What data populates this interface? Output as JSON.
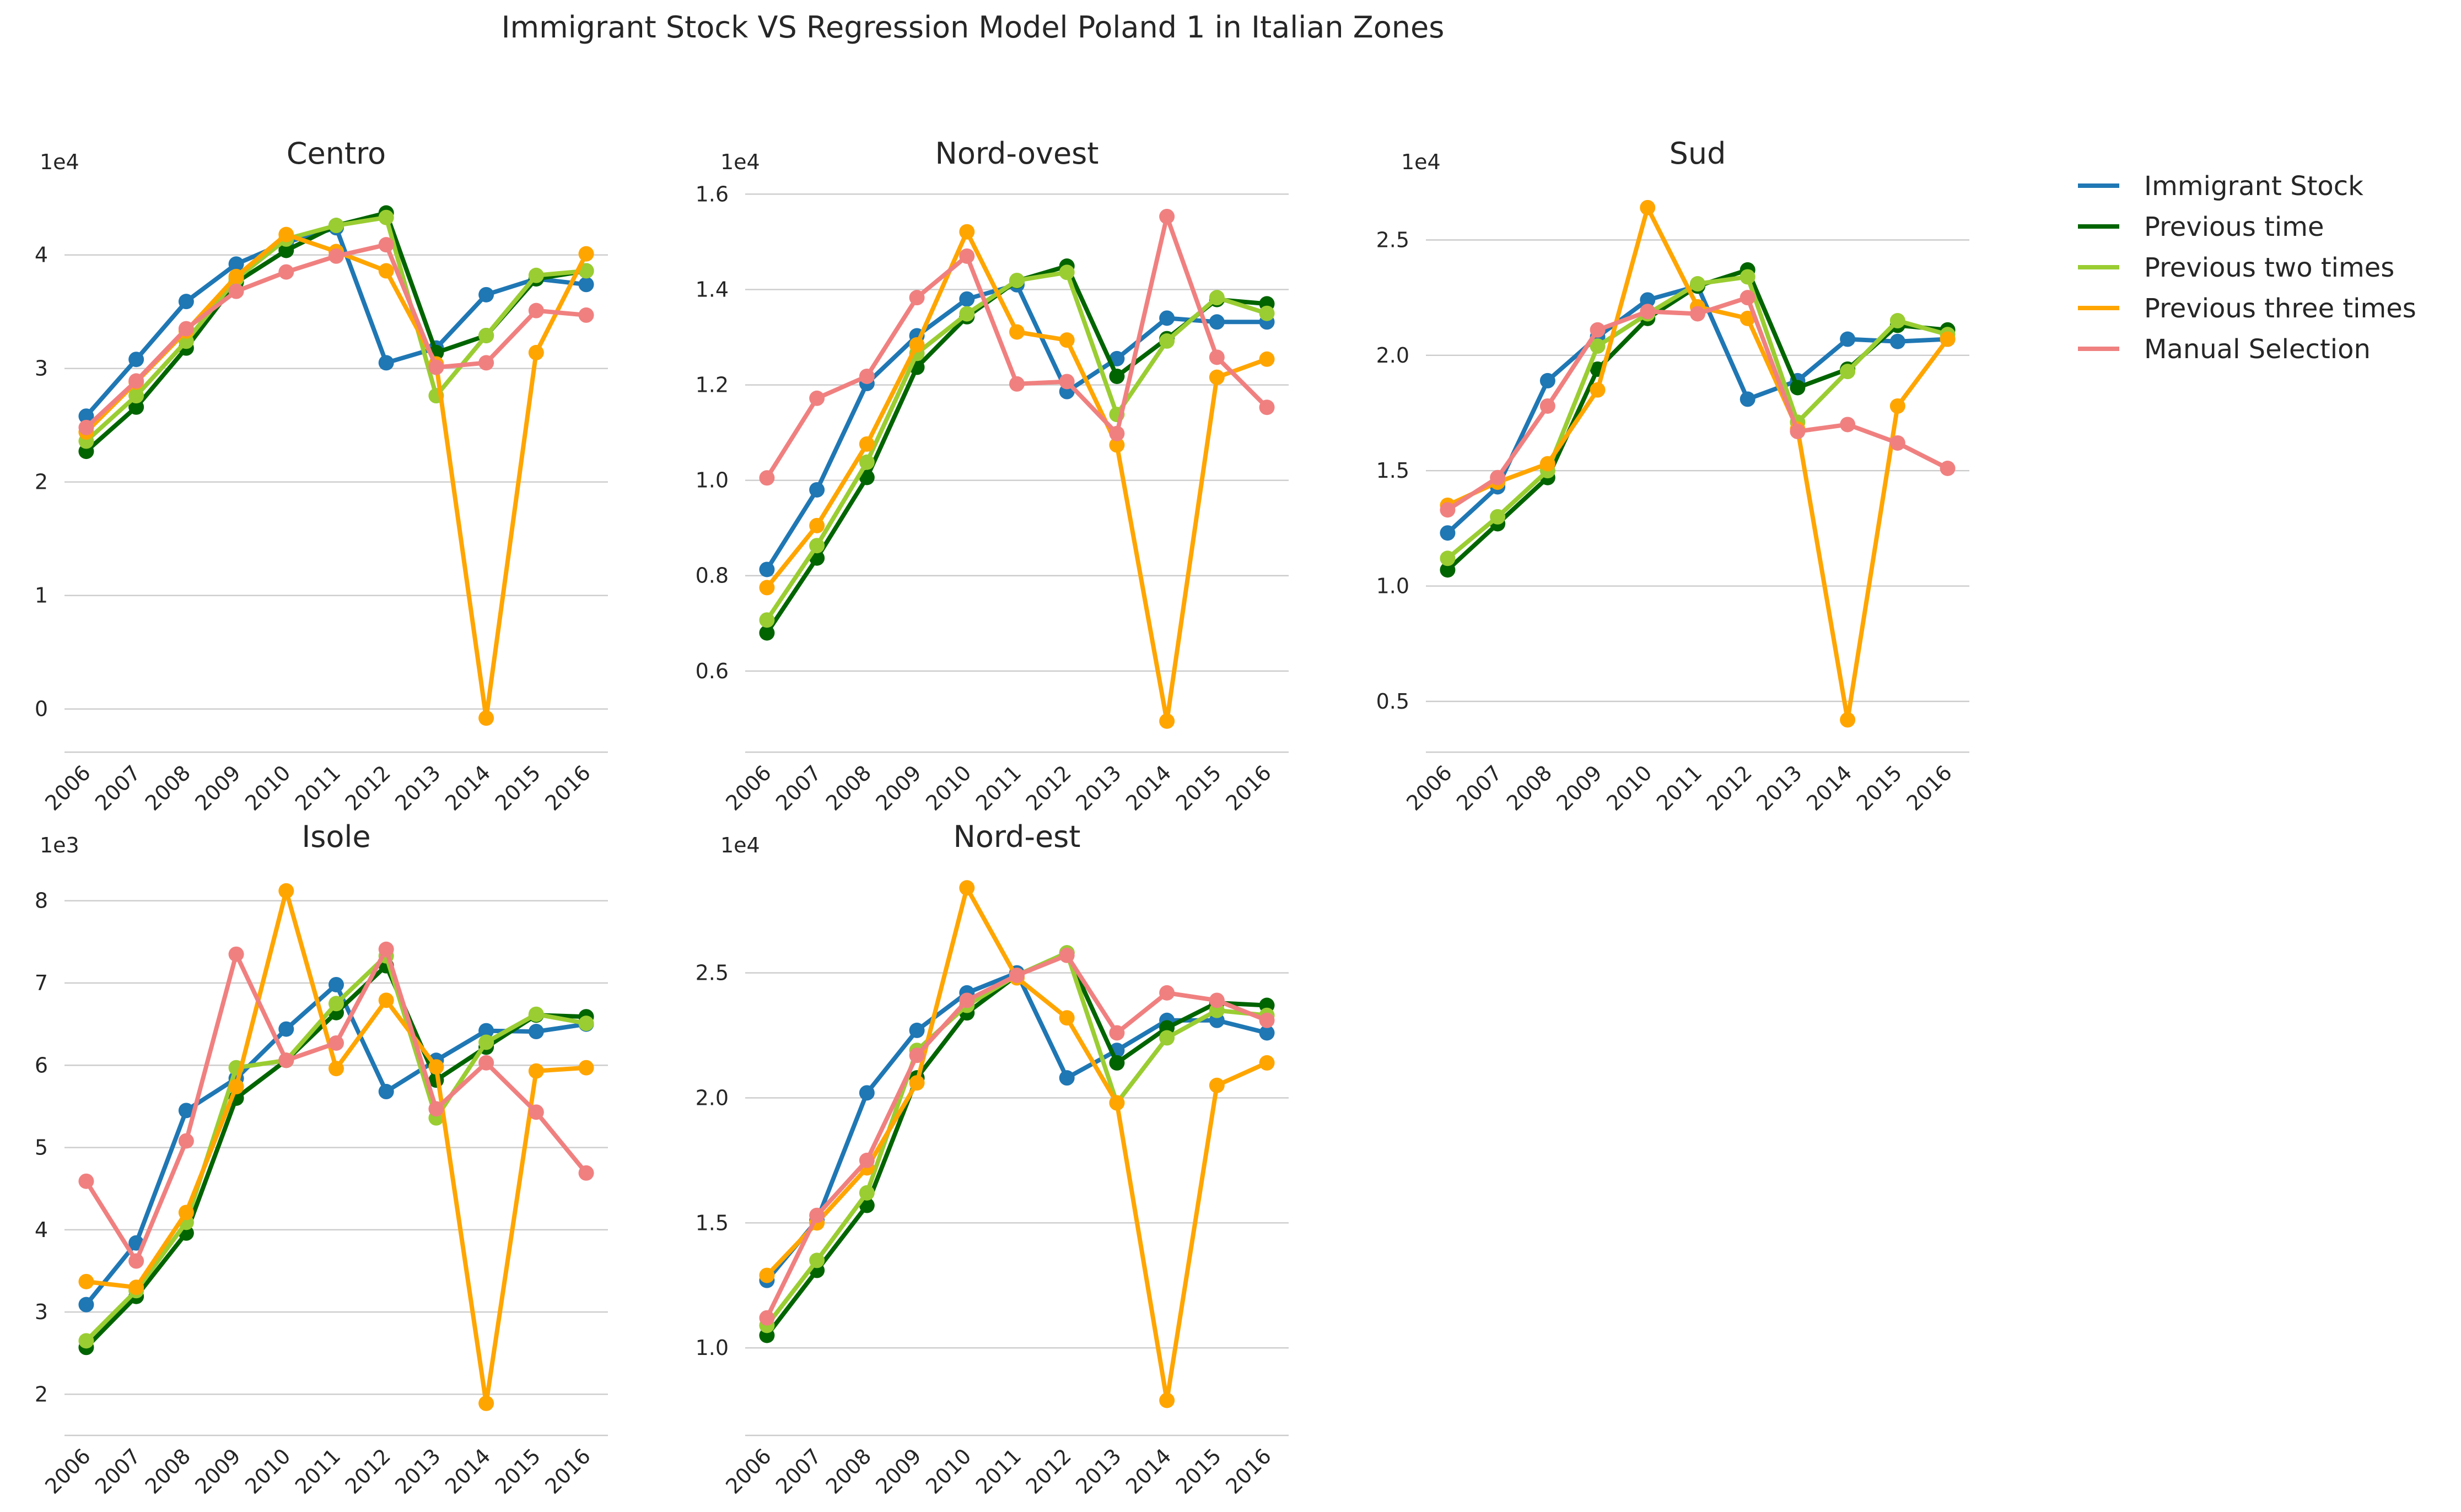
{
  "figure": {
    "title": "Immigrant Stock VS Regression Model Poland 1 in Italian Zones"
  },
  "legend": {
    "placement": "right-top",
    "items": [
      {
        "label": "Immigrant Stock",
        "color": "#1f77b4"
      },
      {
        "label": "Previous time",
        "color": "#006400"
      },
      {
        "label": "Previous two times",
        "color": "#9acd32"
      },
      {
        "label": "Previous three times",
        "color": "#ffa500"
      },
      {
        "label": "Manual Selection",
        "color": "#f08080"
      }
    ]
  },
  "chart_data": [
    {
      "type": "line",
      "title": "Centro",
      "scale_label": "1e4",
      "categories": [
        "2006",
        "2007",
        "2008",
        "2009",
        "2010",
        "2011",
        "2012",
        "2013",
        "2014",
        "2015",
        "2016"
      ],
      "ylim": [
        -0.38,
        4.62
      ],
      "yticks": [
        0,
        1,
        2,
        3,
        4
      ],
      "ytick_labels": [
        "0",
        "1",
        "2",
        "3",
        "4"
      ],
      "grid": "horizontal",
      "series": [
        {
          "name": "Immigrant Stock",
          "color": "#1f77b4",
          "values": [
            2.58,
            3.08,
            3.59,
            3.92,
            4.11,
            4.24,
            3.05,
            3.18,
            3.65,
            3.79,
            3.74
          ]
        },
        {
          "name": "Previous time",
          "color": "#006400",
          "values": [
            2.27,
            2.66,
            3.18,
            3.76,
            4.04,
            4.26,
            4.37,
            3.14,
            3.29,
            3.79,
            3.86
          ]
        },
        {
          "name": "Previous two times",
          "color": "#9acd32",
          "values": [
            2.36,
            2.76,
            3.24,
            3.79,
            4.14,
            4.26,
            4.33,
            2.76,
            3.29,
            3.82,
            3.86
          ]
        },
        {
          "name": "Previous three times",
          "color": "#ffa500",
          "values": [
            2.44,
            2.88,
            3.33,
            3.81,
            4.18,
            4.03,
            3.86,
            3.04,
            -0.08,
            3.14,
            4.01
          ]
        },
        {
          "name": "Manual Selection",
          "color": "#f08080",
          "values": [
            2.48,
            2.89,
            3.35,
            3.68,
            3.85,
            3.99,
            4.09,
            3.01,
            3.05,
            3.51,
            3.47
          ]
        }
      ]
    },
    {
      "type": "line",
      "title": "Nord-ovest",
      "scale_label": "1e4",
      "categories": [
        "2006",
        "2007",
        "2008",
        "2009",
        "2010",
        "2011",
        "2012",
        "2013",
        "2014",
        "2015",
        "2016"
      ],
      "ylim": [
        0.43,
        1.62
      ],
      "yticks": [
        0.6,
        0.8,
        1.0,
        1.2,
        1.4,
        1.6
      ],
      "ytick_labels": [
        "0.6",
        "0.8",
        "1.0",
        "1.2",
        "1.4",
        "1.6"
      ],
      "grid": "horizontal",
      "series": [
        {
          "name": "Immigrant Stock",
          "color": "#1f77b4",
          "values": [
            0.813,
            0.98,
            1.203,
            1.303,
            1.38,
            1.41,
            1.186,
            1.255,
            1.34,
            1.332,
            1.332
          ]
        },
        {
          "name": "Previous time",
          "color": "#006400",
          "values": [
            0.68,
            0.837,
            1.006,
            1.237,
            1.343,
            1.418,
            1.449,
            1.218,
            1.297,
            1.379,
            1.37
          ]
        },
        {
          "name": "Previous two times",
          "color": "#9acd32",
          "values": [
            0.707,
            0.863,
            1.038,
            1.266,
            1.349,
            1.419,
            1.436,
            1.138,
            1.292,
            1.383,
            1.35
          ]
        },
        {
          "name": "Previous three times",
          "color": "#ffa500",
          "values": [
            0.775,
            0.905,
            1.076,
            1.284,
            1.521,
            1.311,
            1.294,
            1.074,
            0.495,
            1.216,
            1.254
          ]
        },
        {
          "name": "Manual Selection",
          "color": "#f08080",
          "values": [
            1.005,
            1.172,
            1.218,
            1.383,
            1.47,
            1.202,
            1.207,
            1.098,
            1.553,
            1.258,
            1.153
          ]
        }
      ]
    },
    {
      "type": "line",
      "title": "Sud",
      "scale_label": "1e4",
      "categories": [
        "2006",
        "2007",
        "2008",
        "2009",
        "2010",
        "2011",
        "2012",
        "2013",
        "2014",
        "2015",
        "2016"
      ],
      "ylim": [
        0.28,
        2.74
      ],
      "yticks": [
        0.5,
        1.0,
        1.5,
        2.0,
        2.5
      ],
      "ytick_labels": [
        "0.5",
        "1.0",
        "1.5",
        "2.0",
        "2.5"
      ],
      "grid": "horizontal",
      "series": [
        {
          "name": "Immigrant Stock",
          "color": "#1f77b4",
          "values": [
            1.23,
            1.43,
            1.89,
            2.08,
            2.24,
            2.3,
            1.81,
            1.89,
            2.07,
            2.06,
            2.07
          ]
        },
        {
          "name": "Previous time",
          "color": "#006400",
          "values": [
            1.07,
            1.27,
            1.47,
            1.94,
            2.16,
            2.3,
            2.37,
            1.86,
            1.94,
            2.13,
            2.11
          ]
        },
        {
          "name": "Previous two times",
          "color": "#9acd32",
          "values": [
            1.12,
            1.3,
            1.5,
            2.04,
            2.18,
            2.31,
            2.34,
            1.71,
            1.93,
            2.15,
            2.09
          ]
        },
        {
          "name": "Previous three times",
          "color": "#ffa500",
          "values": [
            1.35,
            1.45,
            1.53,
            1.85,
            2.64,
            2.21,
            2.16,
            1.68,
            0.42,
            1.78,
            2.07
          ]
        },
        {
          "name": "Manual Selection",
          "color": "#f08080",
          "values": [
            1.33,
            1.47,
            1.78,
            2.11,
            2.19,
            2.18,
            2.25,
            1.67,
            1.7,
            1.62,
            1.51
          ]
        }
      ]
    },
    {
      "type": "line",
      "title": "Isole",
      "scale_label": "1e3",
      "categories": [
        "2006",
        "2007",
        "2008",
        "2009",
        "2010",
        "2011",
        "2012",
        "2013",
        "2014",
        "2015",
        "2016"
      ],
      "ylim": [
        1.5,
        8.4
      ],
      "yticks": [
        2,
        3,
        4,
        5,
        6,
        7,
        8
      ],
      "ytick_labels": [
        "2",
        "3",
        "4",
        "5",
        "6",
        "7",
        "8"
      ],
      "grid": "horizontal",
      "series": [
        {
          "name": "Immigrant Stock",
          "color": "#1f77b4",
          "values": [
            3.09,
            3.84,
            5.45,
            5.84,
            6.44,
            6.98,
            5.68,
            6.06,
            6.42,
            6.41,
            6.5
          ]
        },
        {
          "name": "Previous time",
          "color": "#006400",
          "values": [
            2.57,
            3.19,
            3.96,
            5.6,
            6.06,
            6.64,
            7.21,
            5.82,
            6.22,
            6.61,
            6.59
          ]
        },
        {
          "name": "Previous two times",
          "color": "#9acd32",
          "values": [
            2.65,
            3.26,
            4.09,
            5.97,
            6.06,
            6.75,
            7.33,
            5.36,
            6.28,
            6.62,
            6.51
          ]
        },
        {
          "name": "Previous three times",
          "color": "#ffa500",
          "values": [
            3.37,
            3.3,
            4.21,
            5.74,
            8.12,
            5.96,
            6.79,
            5.98,
            1.89,
            5.93,
            5.97
          ]
        },
        {
          "name": "Manual Selection",
          "color": "#f08080",
          "values": [
            4.59,
            3.62,
            5.08,
            7.35,
            6.06,
            6.27,
            7.41,
            5.47,
            6.03,
            5.43,
            4.69
          ]
        }
      ]
    },
    {
      "type": "line",
      "title": "Nord-est",
      "scale_label": "1e4",
      "categories": [
        "2006",
        "2007",
        "2008",
        "2009",
        "2010",
        "2011",
        "2012",
        "2013",
        "2014",
        "2015",
        "2016"
      ],
      "ylim": [
        0.65,
        2.92
      ],
      "yticks": [
        1.0,
        1.5,
        2.0,
        2.5
      ],
      "ytick_labels": [
        "1.0",
        "1.5",
        "2.0",
        "2.5"
      ],
      "grid": "horizontal",
      "series": [
        {
          "name": "Immigrant Stock",
          "color": "#1f77b4",
          "values": [
            1.27,
            1.51,
            2.02,
            2.27,
            2.42,
            2.5,
            2.08,
            2.19,
            2.31,
            2.31,
            2.26
          ]
        },
        {
          "name": "Previous time",
          "color": "#006400",
          "values": [
            1.05,
            1.31,
            1.57,
            2.08,
            2.34,
            2.49,
            2.58,
            2.14,
            2.28,
            2.38,
            2.37
          ]
        },
        {
          "name": "Previous two times",
          "color": "#9acd32",
          "values": [
            1.09,
            1.35,
            1.62,
            2.19,
            2.37,
            2.49,
            2.58,
            1.98,
            2.24,
            2.35,
            2.33
          ]
        },
        {
          "name": "Previous three times",
          "color": "#ffa500",
          "values": [
            1.29,
            1.5,
            1.72,
            2.06,
            2.84,
            2.48,
            2.32,
            1.98,
            0.79,
            2.05,
            2.14
          ]
        },
        {
          "name": "Manual Selection",
          "color": "#f08080",
          "values": [
            1.12,
            1.53,
            1.75,
            2.17,
            2.39,
            2.49,
            2.57,
            2.26,
            2.42,
            2.39,
            2.31
          ]
        }
      ]
    }
  ]
}
